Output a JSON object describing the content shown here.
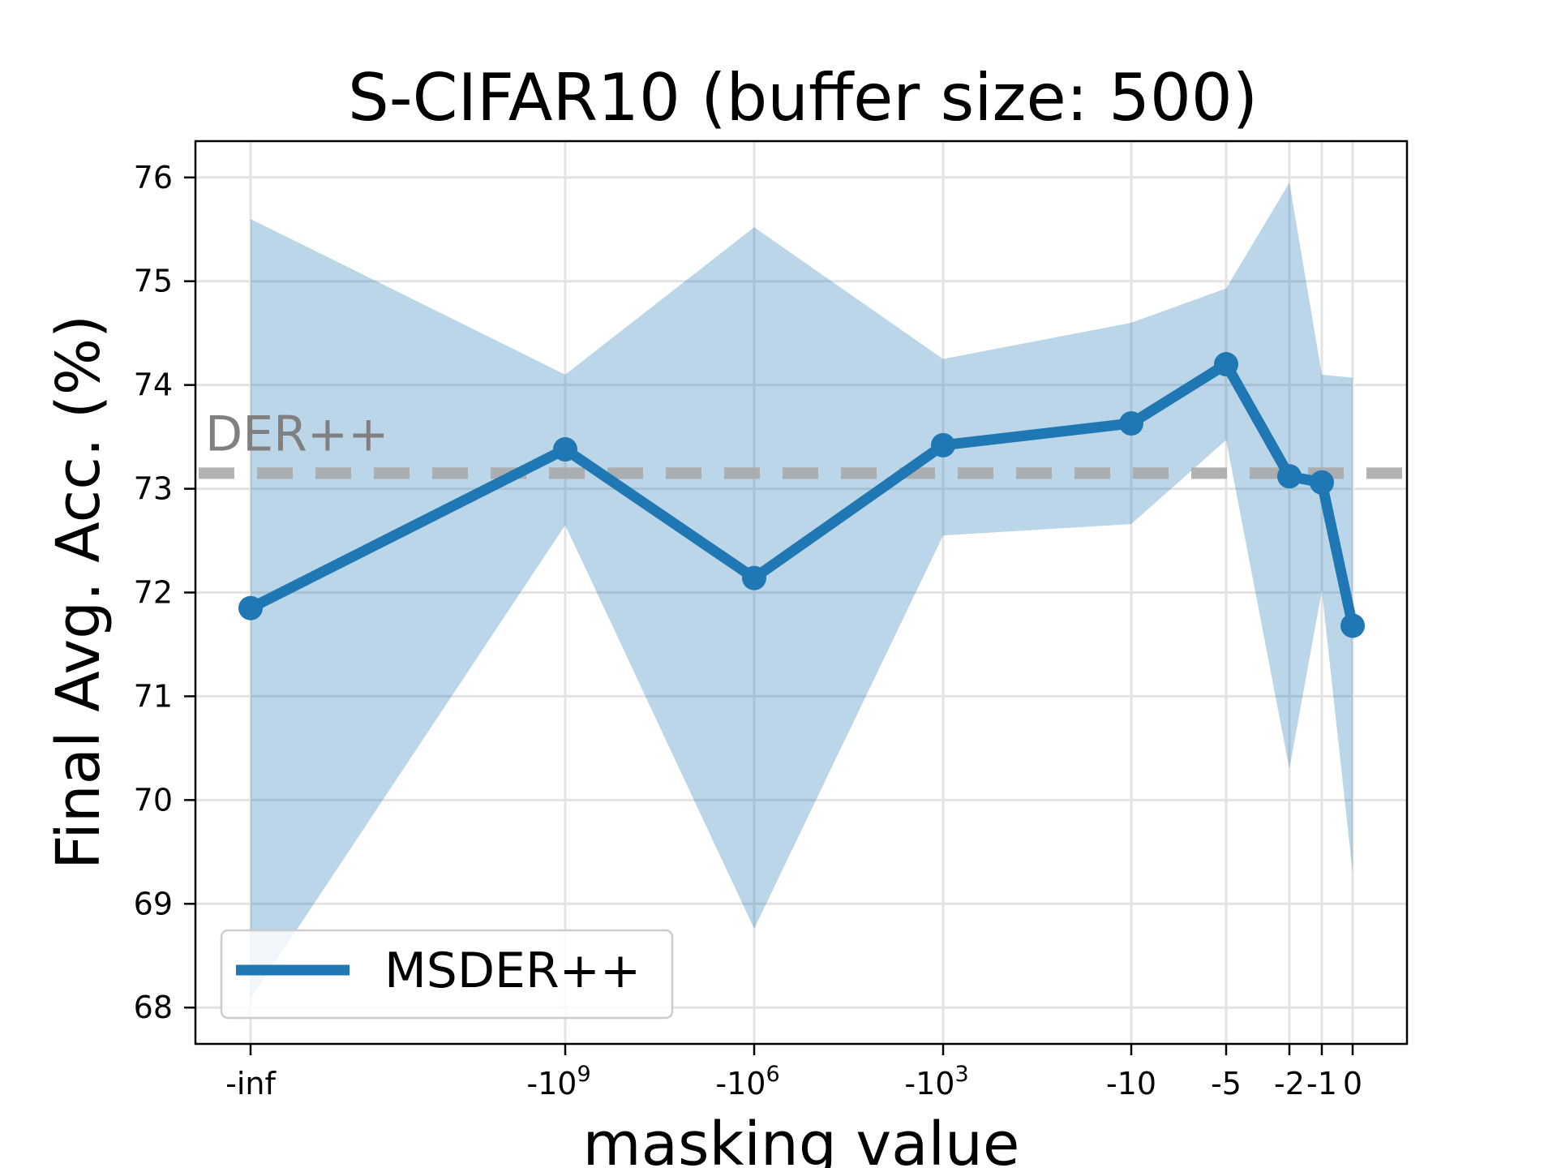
{
  "chart_data": {
    "type": "line",
    "title": "S-CIFAR10 (buffer size: 500)",
    "xlabel": "masking value",
    "ylabel": "Final Avg. Acc. (%)",
    "x_tick_labels": [
      {
        "base": "-inf",
        "sup": ""
      },
      {
        "base": "-10",
        "sup": "9"
      },
      {
        "base": "-10",
        "sup": "6"
      },
      {
        "base": "-10",
        "sup": "3"
      },
      {
        "base": "-10",
        "sup": ""
      },
      {
        "base": "-5",
        "sup": ""
      },
      {
        "base": "-2",
        "sup": ""
      },
      {
        "base": "-1",
        "sup": ""
      },
      {
        "base": "0",
        "sup": ""
      }
    ],
    "y_ticks": [
      "68",
      "69",
      "70",
      "71",
      "72",
      "73",
      "74",
      "75",
      "76"
    ],
    "ylim": [
      67.65,
      76.35
    ],
    "grid": true,
    "legend": {
      "position": "lower left",
      "entries": [
        "MSDER++"
      ]
    },
    "series": [
      {
        "name": "MSDER++",
        "color": "#1f77b4",
        "values": [
          71.85,
          73.38,
          72.14,
          73.42,
          73.63,
          74.2,
          73.12,
          73.06,
          71.68
        ],
        "upper": [
          75.6,
          74.1,
          75.52,
          74.25,
          74.6,
          74.93,
          75.95,
          74.1,
          74.07
        ],
        "lower": [
          68.08,
          72.65,
          68.76,
          72.55,
          72.66,
          73.47,
          70.3,
          72.02,
          69.3
        ]
      }
    ],
    "reference_line": {
      "label": "DER++",
      "value": 73.15,
      "color": "#aaaaaa",
      "style": "dashed"
    }
  }
}
